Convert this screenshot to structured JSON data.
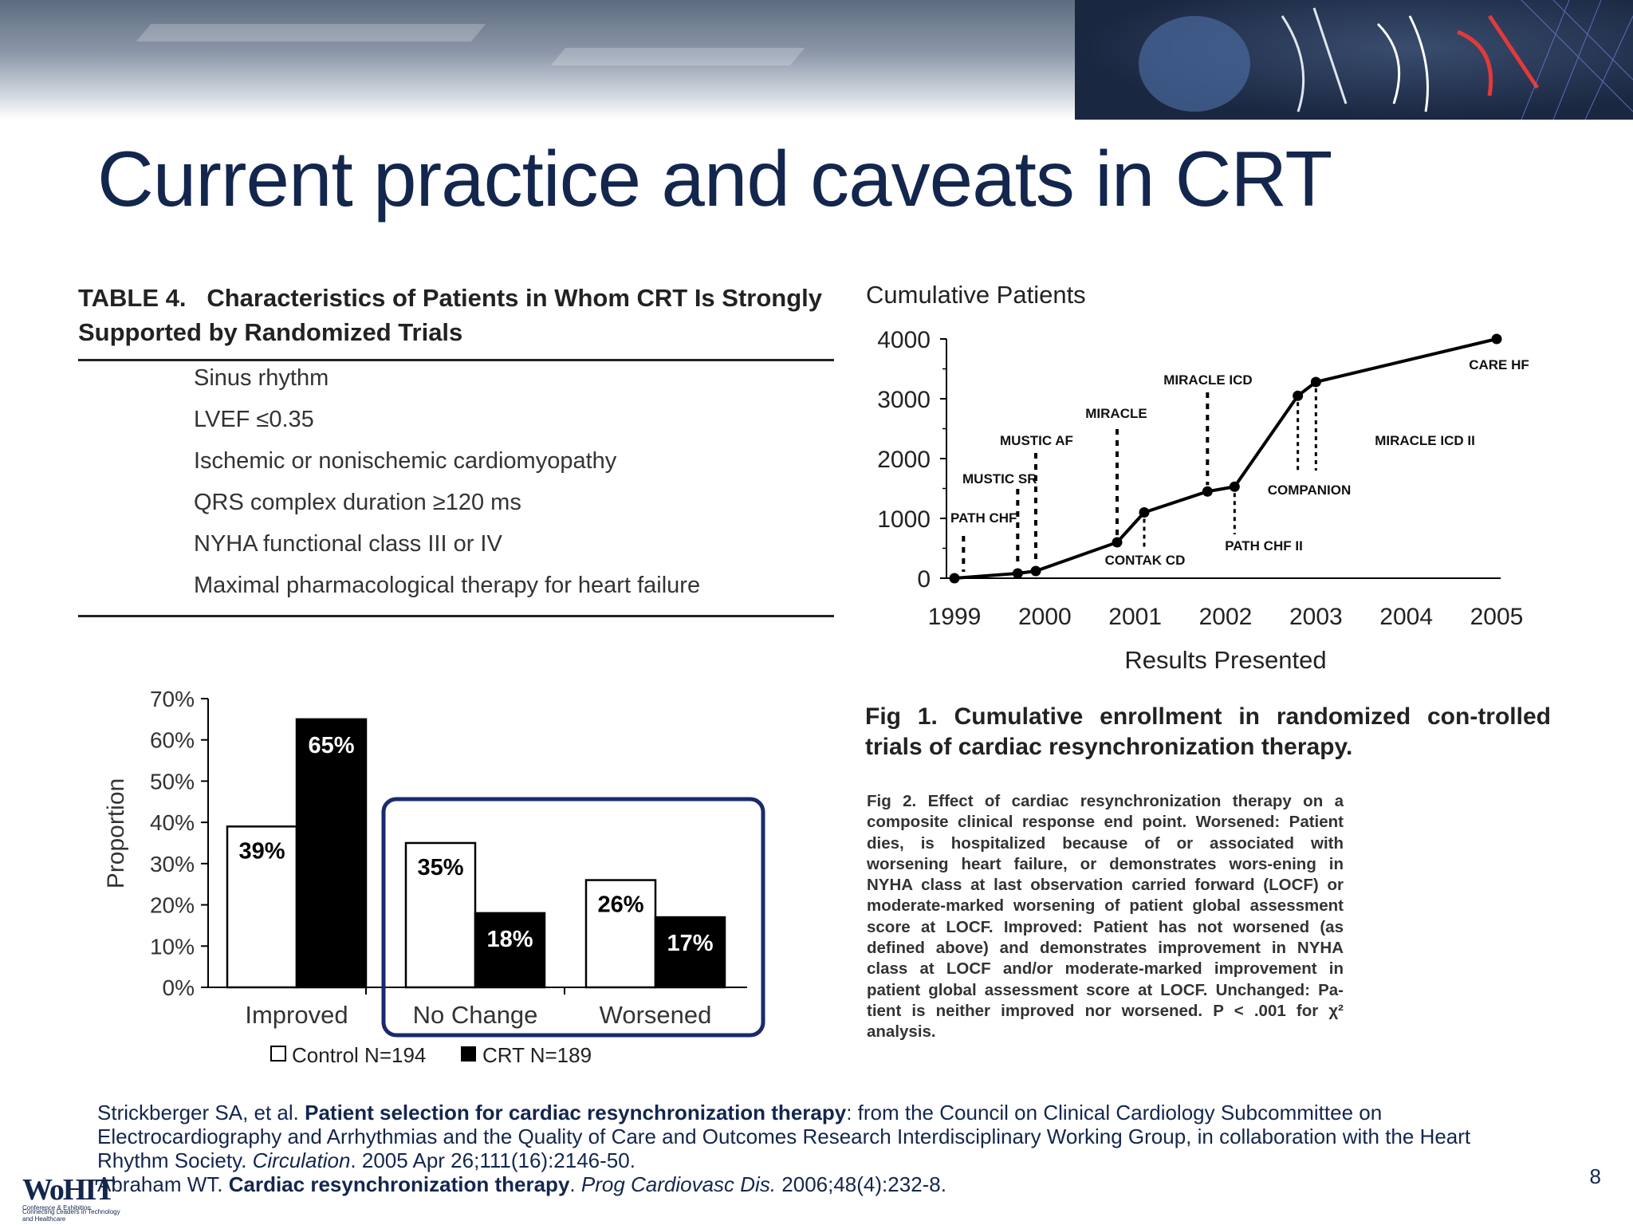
{
  "slide": {
    "title": "Current practice and caveats in CRT",
    "page_number": "8"
  },
  "table": {
    "title_line1": "TABLE 4.   Characteristics of Patients in Whom CRT Is Strongly",
    "title_line2": "Supported by Randomized Trials",
    "rows": [
      "Sinus rhythm",
      "LVEF ≤0.35",
      "Ischemic or nonischemic cardiomyopathy",
      "QRS complex duration ≥120 ms",
      "NYHA functional class III or IV",
      "Maximal pharmacological therapy for heart failure"
    ]
  },
  "fig1_caption": "Fig 1. Cumulative enrollment in randomized con-trolled trials of cardiac resynchronization therapy.",
  "fig2_caption": "Fig 2. Effect of cardiac resynchronization therapy on a composite clinical response end point. Worsened: Patient dies, is hospitalized because of or associated with worsening heart failure, or demonstrates wors-ening in NYHA class at last observation carried forward (LOCF) or moderate-marked worsening of patient global assessment score at LOCF. Improved: Patient has not worsened (as defined above) and demonstrates improvement in NYHA class at LOCF and/or moderate-marked improvement in patient global assessment score at LOCF. Unchanged: Pa-tient is neither improved nor worsened. P < .001 for χ² analysis.",
  "references": {
    "ref1_authors": "Strickberger SA, et al. ",
    "ref1_title": "Patient selection for cardiac resynchronization therapy",
    "ref1_rest": ": from the Council on Clinical Cardiology Subcommittee on Electrocardiography and Arrhythmias and the Quality of Care and Outcomes Research Interdisciplinary Working Group, in collaboration with the Heart Rhythm Society. ",
    "ref1_journal": "Circulation",
    "ref1_cite": ". 2005 Apr 26;111(16):2146-50.",
    "ref2_authors": "Abraham WT. ",
    "ref2_title": "Cardiac resynchronization therapy",
    "ref2_journal": "Prog Cardiovasc Dis.",
    "ref2_cite": " 2006;48(4):232-8."
  },
  "logo": {
    "mark": "WoHIT",
    "sub1": "Conference & Exhibition",
    "sub2": "Connecting Leaders in Technology and Healthcare"
  },
  "colors": {
    "title": "#13264e",
    "highlight_box": "#1a2a6c",
    "crt_bar": "#000000",
    "control_bar": "#ffffff"
  },
  "chart_data": [
    {
      "type": "line",
      "title": "Cumulative Patients",
      "xlabel": "Results Presented",
      "ylabel": "",
      "x_ticks": [
        "1999",
        "2000",
        "2001",
        "2002",
        "2003",
        "2004",
        "2005"
      ],
      "y_ticks": [
        "0",
        "1000",
        "2000",
        "3000",
        "4000"
      ],
      "xlim": [
        1999,
        2005
      ],
      "ylim": [
        0,
        4000
      ],
      "series": [
        {
          "x": [
            1999.0,
            1999.7,
            1999.9,
            2000.8,
            2001.1,
            2001.8,
            2002.1,
            2002.8,
            2003.0,
            2005.0
          ],
          "y": [
            0,
            80,
            120,
            600,
            1100,
            1450,
            1530,
            3050,
            3280,
            4000
          ]
        }
      ],
      "annotations": [
        {
          "label": "PATH CHF",
          "x": 1999.1,
          "y": 0
        },
        {
          "label": "MUSTIC SR",
          "x": 1999.7,
          "y": 80
        },
        {
          "label": "MUSTIC AF",
          "x": 1999.9,
          "y": 120
        },
        {
          "label": "MIRACLE",
          "x": 2000.8,
          "y": 600
        },
        {
          "label": "CONTAK CD",
          "x": 2001.1,
          "y": 1100
        },
        {
          "label": "MIRACLE ICD",
          "x": 2001.8,
          "y": 1450
        },
        {
          "label": "PATH CHF II",
          "x": 2002.1,
          "y": 1530
        },
        {
          "label": "COMPANION",
          "x": 2002.8,
          "y": 3050
        },
        {
          "label": "MIRACLE ICD II",
          "x": 2003.0,
          "y": 3280
        },
        {
          "label": "CARE HF",
          "x": 2005.0,
          "y": 4000
        }
      ],
      "grid": false
    },
    {
      "type": "bar",
      "title": "",
      "xlabel": "",
      "ylabel": "Proportion",
      "categories": [
        "Improved",
        "No Change",
        "Worsened"
      ],
      "y_ticks": [
        "0%",
        "10%",
        "20%",
        "30%",
        "40%",
        "50%",
        "60%",
        "70%"
      ],
      "ylim": [
        0,
        70
      ],
      "series": [
        {
          "name": "Control N=194",
          "values": [
            39,
            35,
            26
          ],
          "labels": [
            "39%",
            "35%",
            "26%"
          ]
        },
        {
          "name": "CRT N=189",
          "values": [
            65,
            18,
            17
          ],
          "labels": [
            "65%",
            "18%",
            "17%"
          ]
        }
      ],
      "legend": "bottom",
      "highlight": "No Change and Worsened"
    }
  ]
}
